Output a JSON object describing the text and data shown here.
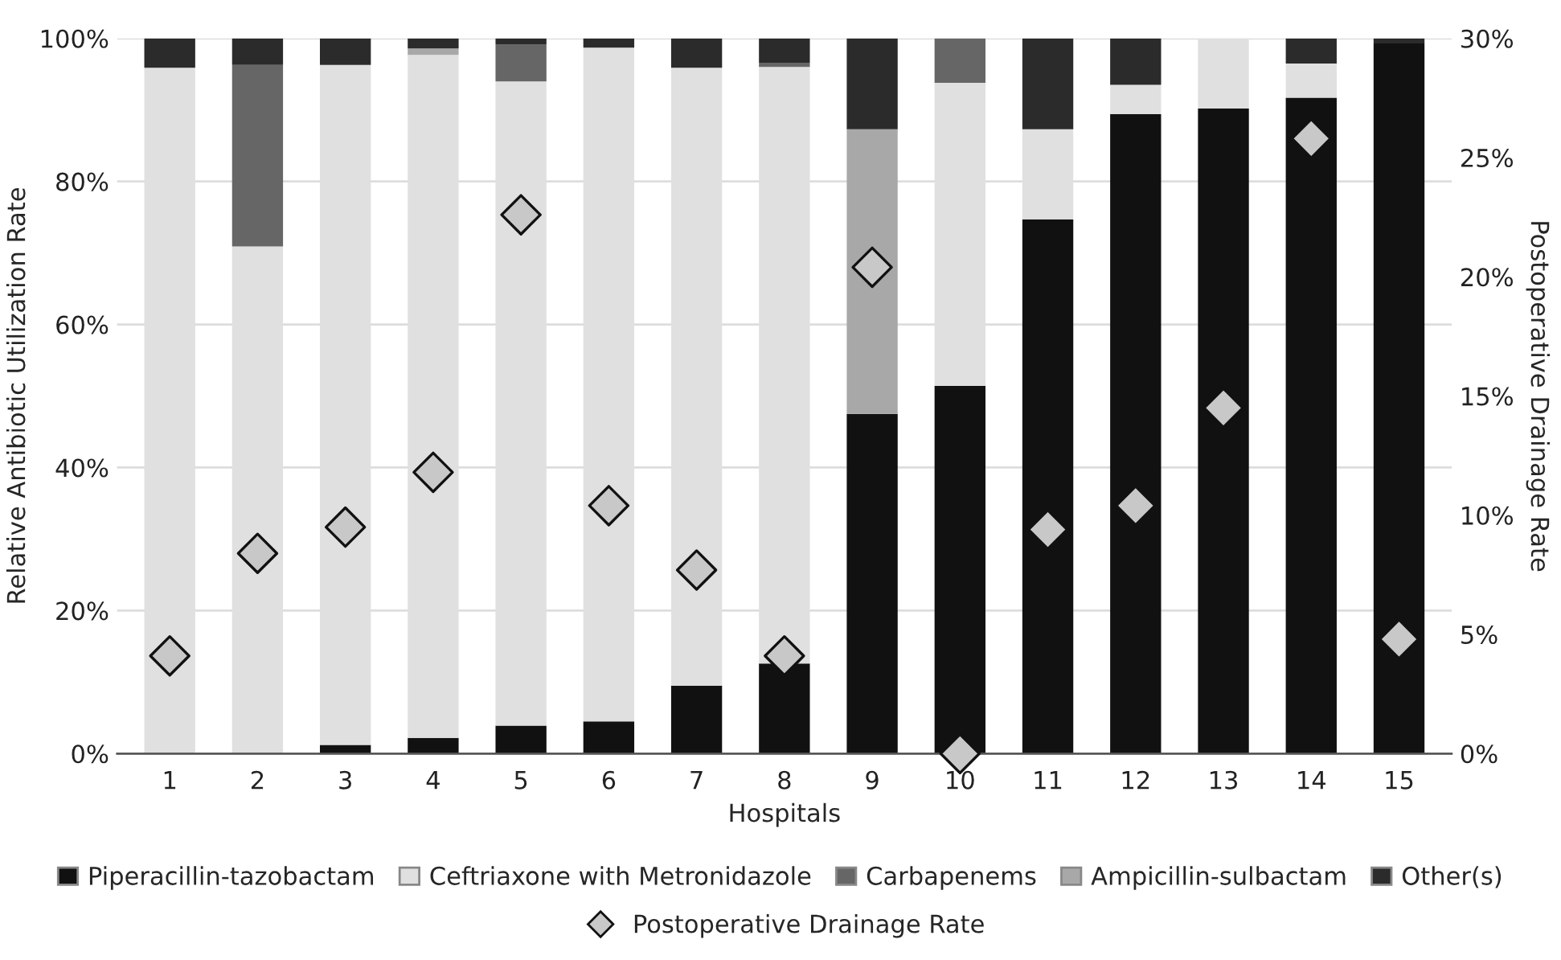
{
  "chart_data": {
    "type": "bar",
    "stacked": true,
    "xlabel": "Hospitals",
    "ylabel": "Relative Antibiotic Utilization Rate",
    "y2label": "Postoperative Drainage Rate",
    "categories": [
      "1",
      "2",
      "3",
      "4",
      "5",
      "6",
      "7",
      "8",
      "9",
      "10",
      "11",
      "12",
      "13",
      "14",
      "15"
    ],
    "series": [
      {
        "name": "Piperacillin-tazobactam",
        "color": "#111111",
        "values": [
          0,
          0,
          1.2,
          2.2,
          3.9,
          4.5,
          9.5,
          12.6,
          47.5,
          51.4,
          74.7,
          89.4,
          90.2,
          91.7,
          99.3
        ]
      },
      {
        "name": "Ceftriaxone with Metronidazole",
        "color": "#e0e0e0",
        "values": [
          95.9,
          70.9,
          95.1,
          95.5,
          90.1,
          94.2,
          86.4,
          83.4,
          0,
          42.4,
          12.6,
          4.1,
          9.8,
          4.8,
          0
        ]
      },
      {
        "name": "Carbapenems",
        "color": "#666666",
        "values": [
          0,
          25.4,
          0,
          0,
          5.2,
          0,
          0,
          0.6,
          0,
          6.2,
          0,
          0,
          0,
          0,
          0
        ]
      },
      {
        "name": "Ampicillin-sulbactam",
        "color": "#a8a8a8",
        "values": [
          0,
          0,
          0,
          0.9,
          0,
          0,
          0,
          0,
          39.8,
          0,
          0,
          0,
          0,
          0,
          0
        ]
      },
      {
        "name": "Other(s)",
        "color": "#2b2b2b",
        "values": [
          4.1,
          3.7,
          3.7,
          1.4,
          0.8,
          1.3,
          4.1,
          3.4,
          12.7,
          0,
          12.7,
          6.5,
          0,
          3.5,
          0.7
        ]
      },
      {
        "name": "Postoperative Drainage Rate",
        "type": "scatter",
        "axis": "y2",
        "marker": "diamond",
        "color": "#c8c8c8",
        "values": [
          4.1,
          8.4,
          9.5,
          11.8,
          22.6,
          10.4,
          7.7,
          4.1,
          20.4,
          0,
          9.4,
          10.4,
          14.5,
          25.8,
          4.8
        ]
      }
    ],
    "ylim": [
      0,
      100
    ],
    "yticks": [
      {
        "value": 0,
        "label": "0%"
      },
      {
        "value": 20,
        "label": "20%"
      },
      {
        "value": 40,
        "label": "40%"
      },
      {
        "value": 60,
        "label": "60%"
      },
      {
        "value": 80,
        "label": "80%"
      },
      {
        "value": 100,
        "label": "100%"
      }
    ],
    "y2lim": [
      0,
      30
    ],
    "y2ticks": [
      {
        "value": 0,
        "label": "0%"
      },
      {
        "value": 5,
        "label": "5%"
      },
      {
        "value": 10,
        "label": "10%"
      },
      {
        "value": 15,
        "label": "15%"
      },
      {
        "value": 20,
        "label": "20%"
      },
      {
        "value": 25,
        "label": "25%"
      },
      {
        "value": 30,
        "label": "30%"
      }
    ],
    "grid": "y",
    "legend": "bottom"
  }
}
